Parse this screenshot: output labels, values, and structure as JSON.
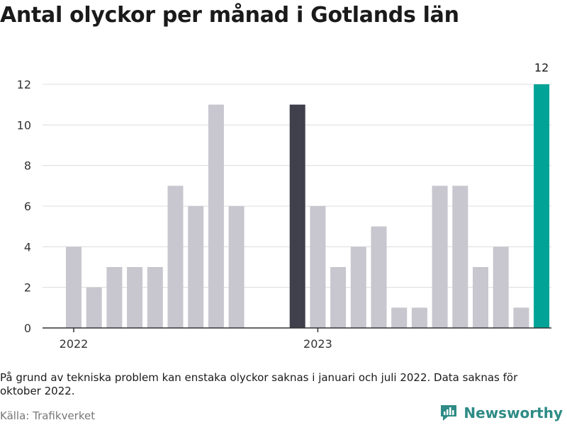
{
  "title": "Antal olyckor per månad i Gotlands län",
  "footnote": "På grund av tekniska problem kan enstaka olyckor saknas i januari och juli 2022. Data saknas för oktober 2022.",
  "source": "Källa: Trafikverket",
  "brand": "Newsworthy",
  "colors": {
    "default_bar": "#c8c6ce",
    "last_year_bar": "#403f4c",
    "latest_bar": "#00a396",
    "grid": "#dcdcdc",
    "axis": "#333333",
    "brand": "#2e8b85"
  },
  "chart_data": {
    "type": "bar",
    "title": "Antal olyckor per månad i Gotlands län",
    "xlabel": "",
    "ylabel": "",
    "ylim": [
      0,
      12
    ],
    "yticks": [
      0,
      2,
      4,
      6,
      8,
      10,
      12
    ],
    "grid": true,
    "x_tick_labels": [
      {
        "label": "2022",
        "category": "2022-01"
      },
      {
        "label": "2023",
        "category": "2023-01"
      }
    ],
    "categories": [
      "2022-01",
      "2022-02",
      "2022-03",
      "2022-04",
      "2022-05",
      "2022-06",
      "2022-07",
      "2022-08",
      "2022-09",
      "2022-10",
      "2022-11",
      "2022-12",
      "2023-01",
      "2023-02",
      "2023-03",
      "2023-04",
      "2023-05",
      "2023-06",
      "2023-07",
      "2023-08",
      "2023-09",
      "2023-10",
      "2023-11",
      "2023-12"
    ],
    "values": [
      4,
      2,
      3,
      3,
      3,
      7,
      6,
      11,
      6,
      null,
      null,
      11,
      6,
      3,
      4,
      5,
      1,
      1,
      7,
      7,
      3,
      4,
      1,
      12
    ],
    "highlights": [
      {
        "category": "2022-12",
        "color": "#403f4c"
      },
      {
        "category": "2023-12",
        "color": "#00a396",
        "label": "12"
      }
    ]
  }
}
